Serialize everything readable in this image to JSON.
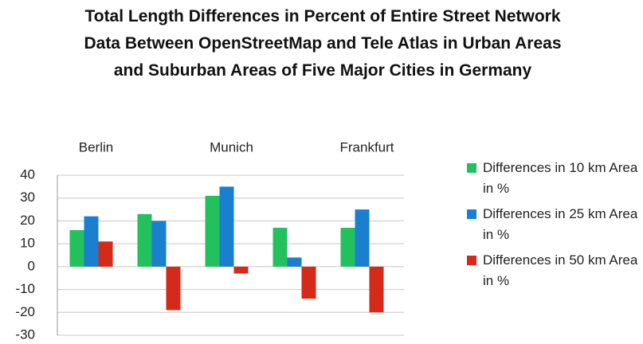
{
  "chart_data": {
    "type": "bar",
    "title": "Total Length Differences in Percent of Entire Street Network Data Between OpenStreetMap and Tele Atlas in Urban Areas and Suburban Areas of Five Major Cities in Germany",
    "categories": [
      "Berlin",
      null,
      "Munich",
      null,
      "Frankfurt"
    ],
    "series": [
      {
        "name": "Differences in 10 km Area in %",
        "color": "#22c15e",
        "values": [
          16,
          23,
          31,
          17,
          17
        ]
      },
      {
        "name": "Differences in 25 km Area in %",
        "color": "#1a7fcf",
        "values": [
          22,
          20,
          35,
          4,
          25
        ]
      },
      {
        "name": "Differences in 50 km Area in %",
        "color": "#d42a1a",
        "values": [
          11,
          -19,
          -3,
          -14,
          -20
        ]
      }
    ],
    "ylim": [
      -30,
      40
    ],
    "yticks": [
      -30,
      -20,
      -10,
      0,
      10,
      20,
      30,
      40
    ],
    "grid": true,
    "legend": "right"
  }
}
